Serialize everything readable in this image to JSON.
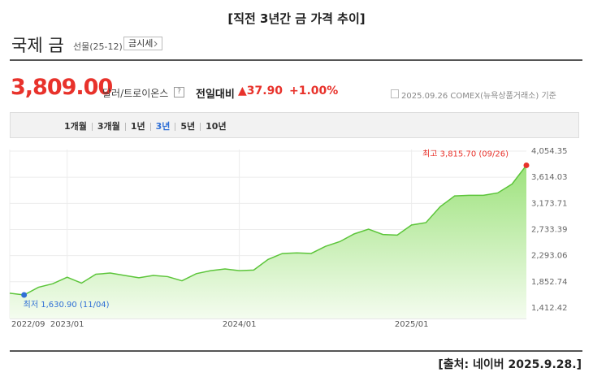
{
  "title": "[직전 3년간 금 가격 추이]",
  "header": {
    "name": "국제 금",
    "contract": "선물(25-12)",
    "button": "금시세",
    "price": "3,809.00",
    "unit": "달러/트로이온스",
    "help": "?",
    "change_label": "전일대비",
    "change": "▲37.90",
    "change_pct": "+1.00%",
    "basis": "2025.09.26 COMEX(뉴욕상품거래소) 기준"
  },
  "tabs": [
    "1개월",
    "3개월",
    "1년",
    "3년",
    "5년",
    "10년"
  ],
  "active_tab": 3,
  "chart_data": {
    "type": "area",
    "categories": [
      "2022/09",
      null,
      null,
      null,
      "2023/01",
      null,
      null,
      null,
      null,
      null,
      null,
      null,
      null,
      null,
      null,
      null,
      "2024/01",
      null,
      null,
      null,
      null,
      null,
      null,
      null,
      null,
      null,
      null,
      null,
      "2025/01",
      null,
      null,
      null,
      null,
      null,
      null,
      null,
      null
    ],
    "values": [
      1660,
      1630.9,
      1760,
      1820,
      1930,
      1830,
      1980,
      2000,
      1960,
      1920,
      1960,
      1940,
      1870,
      1990,
      2040,
      2070,
      2040,
      2050,
      2230,
      2330,
      2340,
      2330,
      2450,
      2530,
      2660,
      2740,
      2650,
      2640,
      2810,
      2850,
      3120,
      3300,
      3310,
      3310,
      3350,
      3500,
      3815.7
    ],
    "color": "#5cc53a",
    "ylim": [
      1234,
      4082
    ],
    "yticks": [
      {
        "value": 1412.42,
        "label": "1,412.42"
      },
      {
        "value": 1852.74,
        "label": "1,852.74"
      },
      {
        "value": 2293.06,
        "label": "2,293.06"
      },
      {
        "value": 2733.39,
        "label": "2,733.39"
      },
      {
        "value": 3173.71,
        "label": "3,173.71"
      },
      {
        "value": 3614.03,
        "label": "3,614.03"
      },
      {
        "value": 4054.35,
        "label": "4,054.35"
      }
    ],
    "grid": true,
    "annotations": [
      {
        "text": "최고 3,815.70 (09/26)",
        "color": "#e8322b",
        "index": 36
      },
      {
        "text": "최저 1,630.90 (11/04)",
        "color": "#2f6fd6",
        "index": 1
      }
    ]
  },
  "source": "[출처: 네이버 2025.9.28.]"
}
